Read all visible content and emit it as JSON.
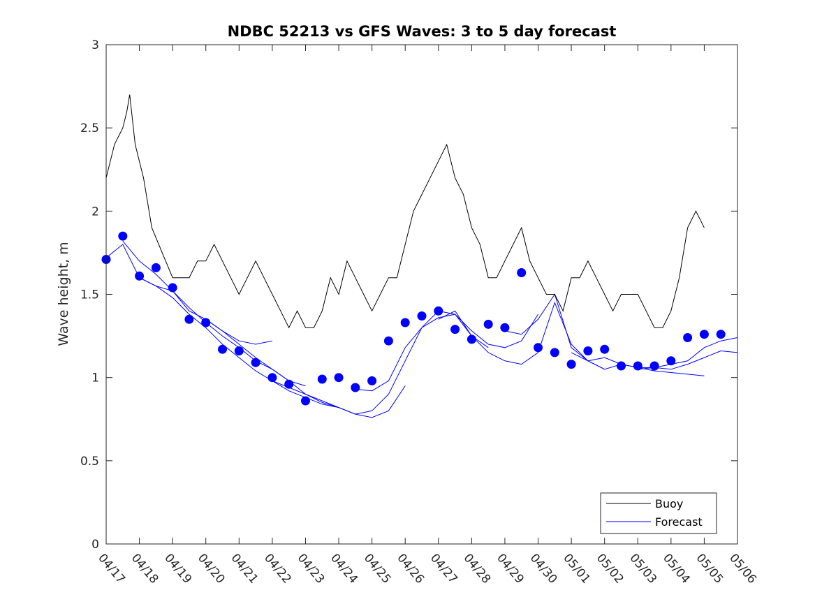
{
  "chart_data": {
    "type": "line",
    "title": "NDBC 52213 vs GFS Waves: 3 to 5 day forecast",
    "xlabel": "",
    "ylabel": "Wave height, m",
    "ylim": [
      0,
      3
    ],
    "yticks": [
      0,
      0.5,
      1,
      1.5,
      2,
      2.5,
      3
    ],
    "ytick_labels": [
      "0",
      "0.5",
      "1",
      "1.5",
      "2",
      "2.5",
      "3"
    ],
    "x_start_label": "04/17",
    "xtick_labels": [
      "04/17",
      "04/18",
      "04/19",
      "04/20",
      "04/21",
      "04/22",
      "04/23",
      "04/24",
      "04/25",
      "04/26",
      "04/27",
      "04/28",
      "04/29",
      "04/30",
      "05/01",
      "05/02",
      "05/03",
      "05/04",
      "05/05",
      "05/06"
    ],
    "grid": false,
    "legend": {
      "placement": "bottom-right",
      "entries": [
        {
          "label": "Buoy",
          "color": "#000000"
        },
        {
          "label": "Forecast",
          "color": "#0000ff"
        }
      ]
    },
    "buoy": {
      "name": "Buoy",
      "color": "#000000",
      "x": [
        "04/17 00:00",
        "04/17 06:00",
        "04/17 12:00",
        "04/17 15:00",
        "04/17 17:00",
        "04/17 21:00",
        "04/18 03:00",
        "04/18 09:00",
        "04/18 14:00",
        "04/18 19:00",
        "04/19 00:00",
        "04/19 06:00",
        "04/19 12:00",
        "04/19 18:00",
        "04/20 00:00",
        "04/20 06:00",
        "04/20 12:00",
        "04/20 18:00",
        "04/21 00:00",
        "04/21 06:00",
        "04/21 12:00",
        "04/21 18:00",
        "04/22 00:00",
        "04/22 06:00",
        "04/22 12:00",
        "04/22 18:00",
        "04/23 00:00",
        "04/23 06:00",
        "04/23 12:00",
        "04/23 18:00",
        "04/24 00:00",
        "04/24 06:00",
        "04/24 12:00",
        "04/24 18:00",
        "04/25 00:00",
        "04/25 06:00",
        "04/25 12:00",
        "04/25 18:00",
        "04/26 00:00",
        "04/26 06:00",
        "04/26 12:00",
        "04/26 18:00",
        "04/27 00:00",
        "04/27 06:00",
        "04/27 12:00",
        "04/27 18:00",
        "04/28 00:00",
        "04/28 06:00",
        "04/28 12:00",
        "04/28 18:00",
        "04/29 00:00",
        "04/29 06:00",
        "04/29 12:00",
        "04/29 18:00",
        "04/30 00:00",
        "04/30 06:00",
        "04/30 12:00",
        "04/30 18:00",
        "05/01 00:00",
        "05/01 06:00",
        "05/01 12:00",
        "05/01 18:00",
        "05/02 00:00",
        "05/02 06:00",
        "05/02 12:00",
        "05/02 18:00",
        "05/03 00:00",
        "05/03 06:00",
        "05/03 12:00",
        "05/03 18:00",
        "05/04 00:00",
        "05/04 06:00",
        "05/04 12:00",
        "05/04 18:00",
        "05/05 00:00"
      ],
      "values": [
        2.2,
        2.4,
        2.5,
        2.6,
        2.7,
        2.4,
        2.2,
        1.9,
        1.8,
        1.7,
        1.6,
        1.6,
        1.6,
        1.7,
        1.7,
        1.8,
        1.7,
        1.6,
        1.5,
        1.6,
        1.7,
        1.6,
        1.5,
        1.4,
        1.3,
        1.4,
        1.3,
        1.3,
        1.4,
        1.6,
        1.5,
        1.7,
        1.6,
        1.5,
        1.4,
        1.5,
        1.6,
        1.6,
        1.8,
        2.0,
        2.1,
        2.2,
        2.3,
        2.4,
        2.2,
        2.1,
        1.9,
        1.8,
        1.6,
        1.6,
        1.7,
        1.8,
        1.9,
        1.7,
        1.6,
        1.5,
        1.5,
        1.4,
        1.6,
        1.6,
        1.7,
        1.6,
        1.5,
        1.4,
        1.5,
        1.5,
        1.5,
        1.4,
        1.3,
        1.3,
        1.4,
        1.6,
        1.9,
        2.0,
        1.9
      ]
    },
    "forecast_lines": [
      {
        "x": [
          "04/17 00:00",
          "04/17 12:00",
          "04/18 00:00",
          "04/18 12:00",
          "04/19 00:00",
          "04/19 12:00",
          "04/20 00:00",
          "04/20 12:00",
          "04/21 00:00",
          "04/21 12:00",
          "04/22 00:00"
        ],
        "values": [
          1.72,
          1.8,
          1.6,
          1.55,
          1.52,
          1.4,
          1.35,
          1.28,
          1.22,
          1.2,
          1.22
        ]
      },
      {
        "x": [
          "04/17 12:00",
          "04/18 00:00",
          "04/18 12:00",
          "04/19 00:00",
          "04/19 12:00",
          "04/20 00:00",
          "04/20 12:00",
          "04/21 00:00",
          "04/21 12:00",
          "04/22 00:00",
          "04/22 12:00",
          "04/23 00:00"
        ],
        "values": [
          1.82,
          1.7,
          1.62,
          1.52,
          1.42,
          1.33,
          1.25,
          1.18,
          1.1,
          1.05,
          0.98,
          0.95
        ]
      },
      {
        "x": [
          "04/18 00:00",
          "04/18 12:00",
          "04/19 00:00",
          "04/19 12:00",
          "04/20 00:00",
          "04/20 12:00",
          "04/21 00:00",
          "04/21 12:00",
          "04/22 00:00",
          "04/22 12:00",
          "04/23 00:00",
          "04/23 12:00",
          "04/24 00:00"
        ],
        "values": [
          1.6,
          1.55,
          1.48,
          1.38,
          1.3,
          1.2,
          1.12,
          1.04,
          0.98,
          0.92,
          0.88,
          0.84,
          0.82
        ]
      },
      {
        "x": [
          "04/20 00:00",
          "04/20 12:00",
          "04/21 00:00",
          "04/21 12:00",
          "04/22 00:00",
          "04/22 12:00",
          "04/23 00:00",
          "04/23 12:00",
          "04/24 00:00",
          "04/24 12:00",
          "04/25 00:00",
          "04/25 12:00",
          "04/26 00:00"
        ],
        "values": [
          1.35,
          1.28,
          1.2,
          1.12,
          1.05,
          0.98,
          0.9,
          0.85,
          0.82,
          0.78,
          0.76,
          0.8,
          0.95
        ]
      },
      {
        "x": [
          "04/22 00:00",
          "04/22 12:00",
          "04/23 00:00",
          "04/23 12:00",
          "04/24 00:00",
          "04/24 12:00",
          "04/25 00:00",
          "04/25 12:00",
          "04/26 00:00",
          "04/26 12:00",
          "04/27 00:00",
          "04/27 12:00",
          "04/28 00:00",
          "04/28 12:00"
        ],
        "values": [
          0.98,
          0.94,
          0.9,
          0.86,
          0.82,
          0.78,
          0.8,
          0.9,
          1.1,
          1.3,
          1.4,
          1.38,
          1.25,
          1.18
        ]
      },
      {
        "x": [
          "04/24 12:00",
          "04/25 00:00",
          "04/25 12:00",
          "04/26 00:00",
          "04/26 12:00",
          "04/27 00:00",
          "04/27 12:00",
          "04/28 00:00",
          "04/28 12:00",
          "04/29 00:00",
          "04/29 12:00",
          "04/30 00:00"
        ],
        "values": [
          0.93,
          0.92,
          0.98,
          1.18,
          1.3,
          1.36,
          1.38,
          1.28,
          1.2,
          1.18,
          1.22,
          1.38
        ]
      },
      {
        "x": [
          "04/27 00:00",
          "04/27 12:00",
          "04/28 00:00",
          "04/28 12:00",
          "04/29 00:00",
          "04/29 12:00",
          "04/30 00:00",
          "04/30 12:00",
          "05/01 00:00",
          "05/01 12:00",
          "05/02 00:00"
        ],
        "values": [
          1.35,
          1.4,
          1.25,
          1.15,
          1.1,
          1.08,
          1.15,
          1.45,
          1.2,
          1.1,
          1.05
        ]
      },
      {
        "x": [
          "04/29 00:00",
          "04/29 12:00",
          "04/30 00:00",
          "04/30 12:00",
          "05/01 00:00",
          "05/01 12:00",
          "05/02 00:00",
          "05/02 12:00",
          "05/03 00:00",
          "05/03 12:00",
          "05/04 00:00",
          "05/04 12:00",
          "05/05 00:00"
        ],
        "values": [
          1.28,
          1.26,
          1.35,
          1.5,
          1.18,
          1.1,
          1.05,
          1.08,
          1.06,
          1.04,
          1.03,
          1.02,
          1.01
        ]
      },
      {
        "x": [
          "05/01 00:00",
          "05/01 12:00",
          "05/02 00:00",
          "05/02 12:00",
          "05/03 00:00",
          "05/03 12:00",
          "05/04 00:00",
          "05/04 12:00",
          "05/05 00:00",
          "05/05 12:00",
          "05/06 00:00"
        ],
        "values": [
          1.15,
          1.1,
          1.12,
          1.08,
          1.06,
          1.06,
          1.05,
          1.08,
          1.12,
          1.16,
          1.15
        ]
      },
      {
        "x": [
          "05/03 00:00",
          "05/03 12:00",
          "05/04 00:00",
          "05/04 12:00",
          "05/05 00:00",
          "05/05 12:00",
          "05/06 00:00"
        ],
        "values": [
          1.05,
          1.06,
          1.08,
          1.1,
          1.18,
          1.22,
          1.24
        ]
      }
    ],
    "forecast_points": {
      "name": "Forecast",
      "color": "#0000ff",
      "x": [
        "04/17 00:00",
        "04/17 12:00",
        "04/18 00:00",
        "04/18 12:00",
        "04/19 00:00",
        "04/19 12:00",
        "04/20 00:00",
        "04/20 12:00",
        "04/21 00:00",
        "04/21 12:00",
        "04/22 00:00",
        "04/22 12:00",
        "04/23 00:00",
        "04/23 12:00",
        "04/24 00:00",
        "04/24 12:00",
        "04/25 00:00",
        "04/25 12:00",
        "04/26 00:00",
        "04/26 12:00",
        "04/27 00:00",
        "04/27 12:00",
        "04/28 00:00",
        "04/28 12:00",
        "04/29 00:00",
        "04/29 12:00",
        "04/30 00:00",
        "04/30 12:00",
        "05/01 00:00",
        "05/01 12:00",
        "05/02 00:00",
        "05/02 12:00",
        "05/03 00:00",
        "05/03 12:00",
        "05/04 00:00",
        "05/04 12:00",
        "05/05 00:00",
        "05/05 12:00"
      ],
      "values": [
        1.71,
        1.85,
        1.61,
        1.66,
        1.54,
        1.35,
        1.33,
        1.17,
        1.16,
        1.09,
        1.0,
        0.96,
        0.86,
        0.99,
        1.0,
        0.94,
        0.98,
        1.22,
        1.33,
        1.37,
        1.4,
        1.29,
        1.23,
        1.32,
        1.3,
        1.63,
        1.18,
        1.15,
        1.08,
        1.16,
        1.17,
        1.07,
        1.07,
        1.07,
        1.1,
        1.24,
        1.26,
        1.26
      ]
    }
  }
}
